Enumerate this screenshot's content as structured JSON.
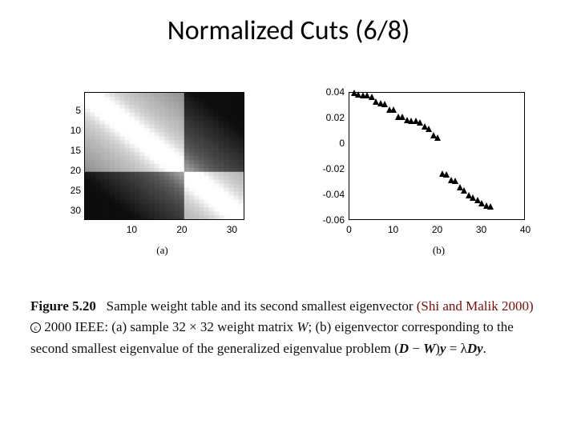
{
  "title": "Normalized Cuts (6/8)",
  "panel_a": {
    "sublabel": "(a)",
    "yticks": [
      5,
      10,
      15,
      20,
      25,
      30
    ],
    "xticks": [
      10,
      20,
      30
    ],
    "heatmap": {
      "size": 32,
      "blocks": [
        {
          "r0": 0,
          "r1": 19,
          "c0": 0,
          "c1": 19,
          "base": 0.92
        },
        {
          "r0": 20,
          "r1": 31,
          "c0": 20,
          "c1": 31,
          "base": 0.92
        },
        {
          "r0": 0,
          "r1": 19,
          "c0": 20,
          "c1": 31,
          "base": 0.45
        },
        {
          "r0": 20,
          "r1": 31,
          "c0": 0,
          "c1": 19,
          "base": 0.45
        }
      ],
      "diag_boost": 0.2,
      "falloff": 0.018
    }
  },
  "panel_b": {
    "sublabel": "(b)",
    "xlim": [
      0,
      40
    ],
    "ylim": [
      -0.06,
      0.04
    ],
    "xticks": [
      0,
      10,
      20,
      30,
      40
    ],
    "yticks": [
      -0.06,
      -0.04,
      -0.02,
      0,
      0.02,
      0.04
    ],
    "marker_color": "#000000",
    "points_x": [
      1,
      2,
      3,
      4,
      5,
      6,
      7,
      8,
      9,
      10,
      11,
      12,
      13,
      14,
      15,
      16,
      17,
      18,
      19,
      20,
      21,
      22,
      23,
      24,
      25,
      26,
      27,
      28,
      29,
      30,
      31,
      32
    ],
    "points_y": [
      0.04,
      0.039,
      0.038,
      0.038,
      0.037,
      0.033,
      0.032,
      0.031,
      0.027,
      0.027,
      0.021,
      0.021,
      0.019,
      0.018,
      0.018,
      0.017,
      0.014,
      0.012,
      0.007,
      0.005,
      -0.023,
      -0.024,
      -0.028,
      -0.029,
      -0.034,
      -0.036,
      -0.04,
      -0.042,
      -0.044,
      -0.046,
      -0.048,
      -0.049
    ]
  },
  "caption": {
    "fig": "Figure 5.20",
    "lead": "Sample weight table and its second smallest eigenvector",
    "cite": "(Shi and Malik 2000)",
    "copyright": "2000 IEEE:",
    "part_a": "(a) sample 32 × 32 weight matrix ",
    "W": "W",
    "part_b": "; (b) eigenvector corresponding to the second smallest eigenvalue of the generalized eigenvalue problem ",
    "eqn_pre": "(",
    "D1": "D",
    "minus": " − ",
    "W2": "W",
    "eqn_mid": ")",
    "y1": "y",
    "eq": " = λ",
    "D2": "D",
    "y2": "y",
    "period": "."
  }
}
